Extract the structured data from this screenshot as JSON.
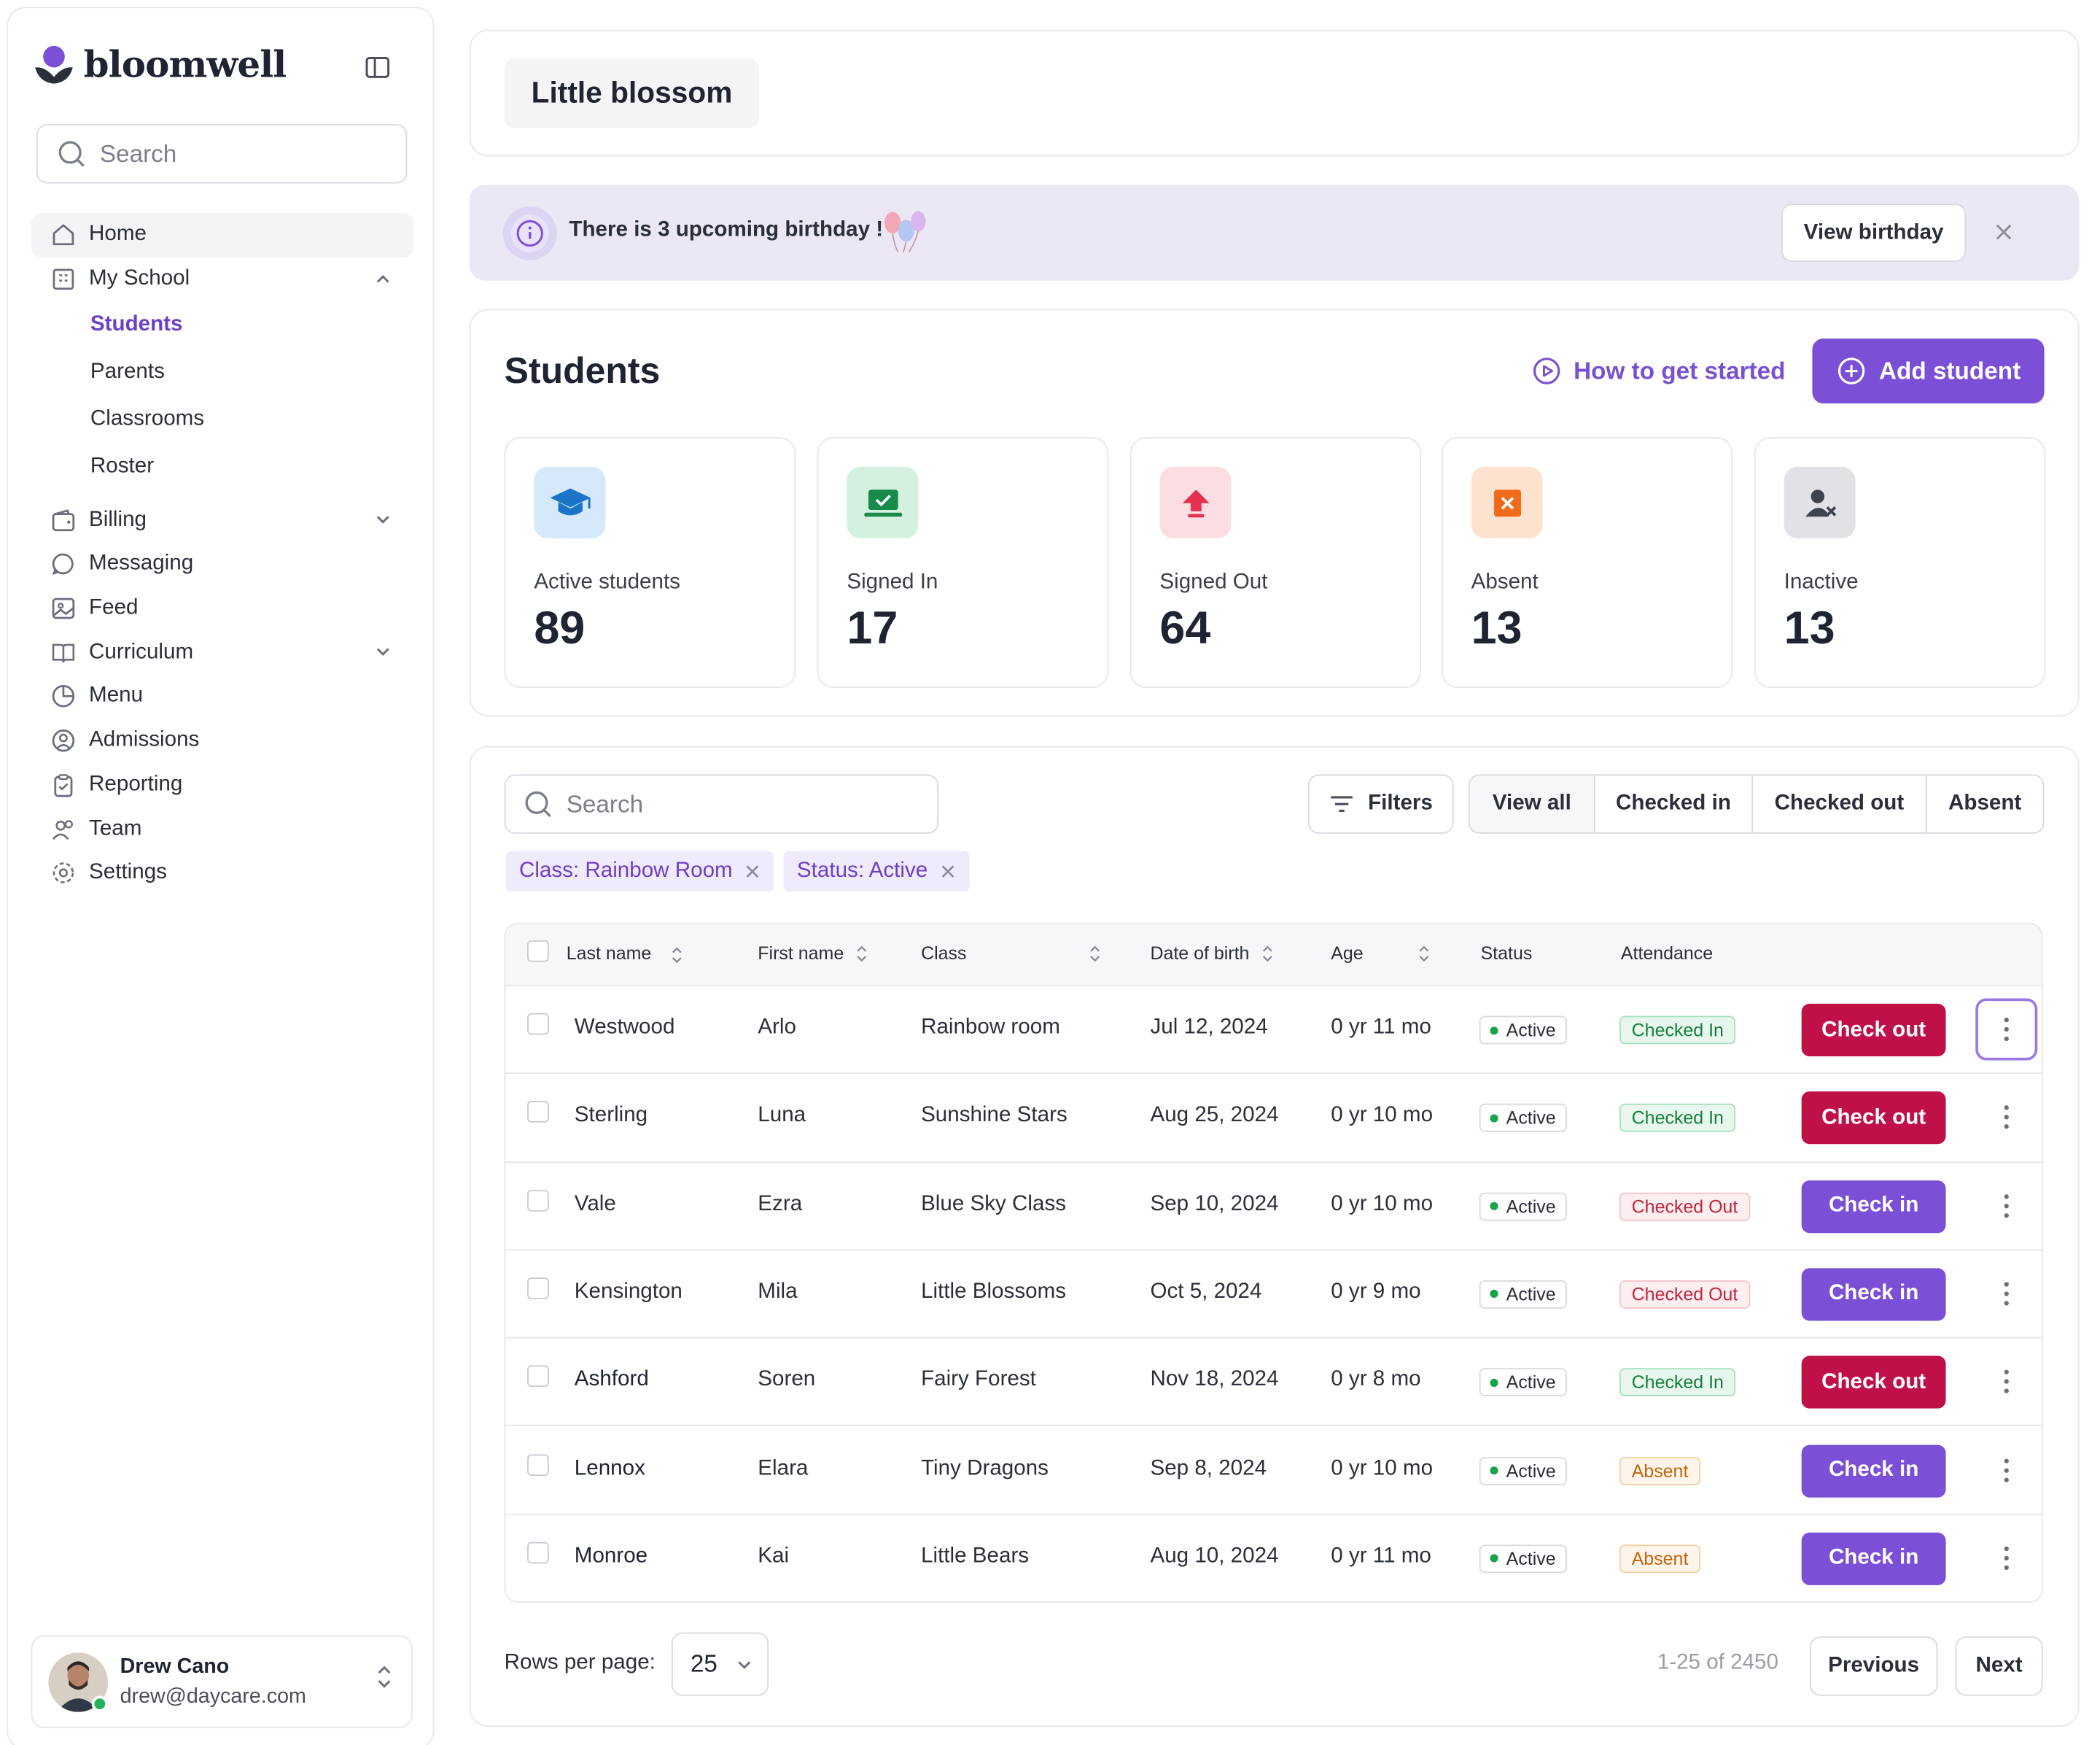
{
  "app": {
    "brand": "bloomwell",
    "brand_color": "#7b4fd6"
  },
  "sidebar": {
    "search_placeholder": "Search",
    "items": [
      {
        "label": "Home",
        "icon": "home-icon"
      },
      {
        "label": "My School",
        "icon": "building-icon",
        "expanded": true
      },
      {
        "label": "Billing",
        "icon": "wallet-icon"
      },
      {
        "label": "Messaging",
        "icon": "chat-icon"
      },
      {
        "label": "Feed",
        "icon": "image-icon"
      },
      {
        "label": "Curriculum",
        "icon": "book-icon"
      },
      {
        "label": "Menu",
        "icon": "pie-icon"
      },
      {
        "label": "Admissions",
        "icon": "user-circle-icon"
      },
      {
        "label": "Reporting",
        "icon": "clipboard-icon"
      },
      {
        "label": "Team",
        "icon": "users-icon"
      },
      {
        "label": "Settings",
        "icon": "gear-icon"
      }
    ],
    "sub_items": [
      "Students",
      "Parents",
      "Classrooms",
      "Roster"
    ],
    "active_sub": "Students",
    "user": {
      "name": "Drew Cano",
      "email": "drew@daycare.com"
    }
  },
  "header": {
    "school_name": "Little blossom"
  },
  "banner": {
    "text": "There is 3 upcoming birthday !",
    "button": "View birthday"
  },
  "students": {
    "title": "Students",
    "how_to": "How to get started",
    "add_button": "Add student",
    "stats": [
      {
        "label": "Active students",
        "value": "89"
      },
      {
        "label": "Signed In",
        "value": "17"
      },
      {
        "label": "Signed Out",
        "value": "64"
      },
      {
        "label": "Absent",
        "value": "13"
      },
      {
        "label": "Inactive",
        "value": "13"
      }
    ]
  },
  "table": {
    "search_placeholder": "Search",
    "filters_label": "Filters",
    "segments": [
      "View all",
      "Checked in",
      "Checked out",
      "Absent"
    ],
    "chips": [
      "Class: Rainbow Room",
      "Status: Active"
    ],
    "columns": [
      "Last name",
      "First name",
      "Class",
      "Date of birth",
      "Age",
      "Status",
      "Attendance"
    ],
    "rows": [
      {
        "last": "Westwood",
        "first": "Arlo",
        "class": "Rainbow room",
        "dob": "Jul 12, 2024",
        "age": "0 yr 11 mo",
        "status": "Active",
        "attendance": "Checked In",
        "action": "Check out"
      },
      {
        "last": "Sterling",
        "first": "Luna",
        "class": "Sunshine Stars",
        "dob": "Aug 25, 2024",
        "age": "0 yr 10 mo",
        "status": "Active",
        "attendance": "Checked In",
        "action": "Check out"
      },
      {
        "last": "Vale",
        "first": "Ezra",
        "class": "Blue Sky Class",
        "dob": "Sep 10, 2024",
        "age": "0 yr 10 mo",
        "status": "Active",
        "attendance": "Checked Out",
        "action": "Check in"
      },
      {
        "last": "Kensington",
        "first": "Mila",
        "class": "Little Blossoms",
        "dob": "Oct 5, 2024",
        "age": "0 yr 9 mo",
        "status": "Active",
        "attendance": "Checked Out",
        "action": "Check in"
      },
      {
        "last": "Ashford",
        "first": "Soren",
        "class": "Fairy Forest",
        "dob": "Nov 18, 2024",
        "age": "0 yr 8 mo",
        "status": "Active",
        "attendance": "Checked In",
        "action": "Check out"
      },
      {
        "last": "Lennox",
        "first": "Elara",
        "class": "Tiny Dragons",
        "dob": "Sep 8, 2024",
        "age": "0 yr 10 mo",
        "status": "Active",
        "attendance": "Absent",
        "action": "Check in"
      },
      {
        "last": "Monroe",
        "first": "Kai",
        "class": "Little Bears",
        "dob": "Aug 10, 2024",
        "age": "0 yr 11 mo",
        "status": "Active",
        "attendance": "Absent",
        "action": "Check in"
      }
    ],
    "rows_per_page_label": "Rows per page:",
    "rows_per_page": "25",
    "page_info": "1-25 of 2450",
    "previous": "Previous",
    "next": "Next"
  }
}
